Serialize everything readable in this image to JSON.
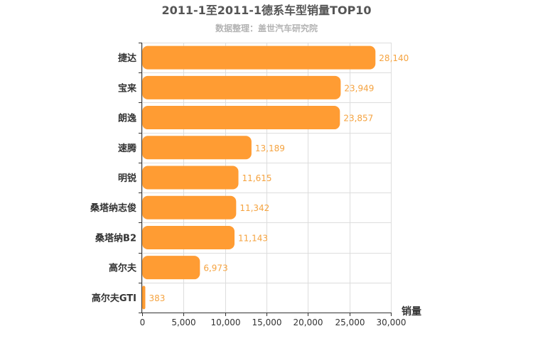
{
  "chart_data": {
    "type": "bar",
    "orientation": "horizontal",
    "title": "2011-1至2011-1德系车型销量TOP10",
    "subtitle": "数据整理：盖世汽车研究院",
    "xlabel": "销量",
    "ylabel": "",
    "categories": [
      "捷达",
      "宝来",
      "朗逸",
      "速腾",
      "明锐",
      "桑塔纳志俊",
      "桑塔纳B2",
      "高尔夫",
      "高尔夫GTI"
    ],
    "values": [
      28140,
      23949,
      23857,
      13189,
      11615,
      11342,
      11143,
      6973,
      383
    ],
    "value_labels": [
      "28,140",
      "23,949",
      "23,857",
      "13,189",
      "11,615",
      "11,342",
      "11,143",
      "6,973",
      "383"
    ],
    "xlim": [
      0,
      30000
    ],
    "ticks": [
      0,
      5000,
      10000,
      15000,
      20000,
      25000,
      30000
    ],
    "tick_labels": [
      "0",
      "5,000",
      "10,000",
      "15,000",
      "20,000",
      "25,000",
      "30,000"
    ],
    "grid": true,
    "colors": {
      "bar": "#ff9c33",
      "data_label": "#f5a340",
      "title": "#555555",
      "subtitle": "#b3b3b3"
    }
  }
}
